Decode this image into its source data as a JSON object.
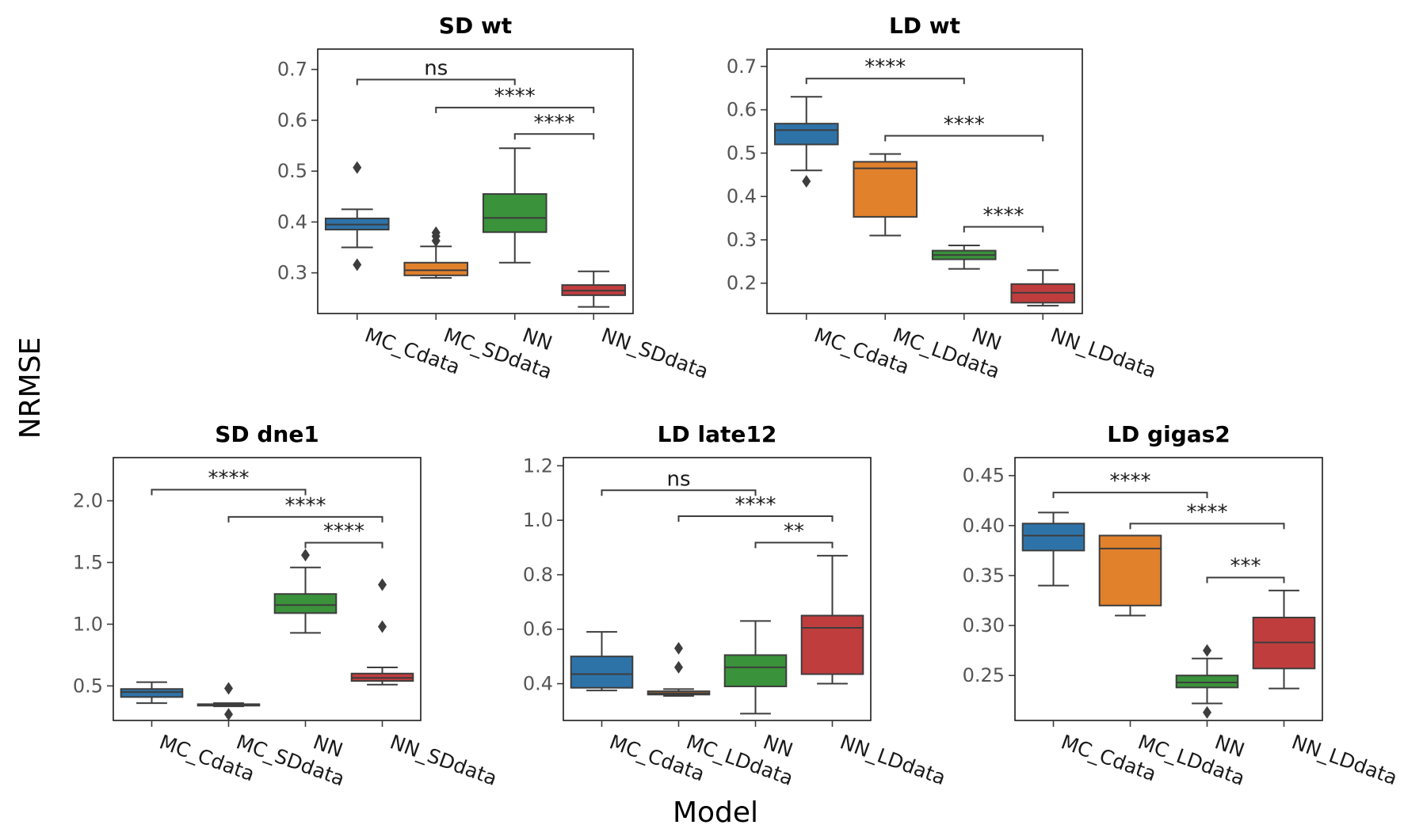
{
  "figure": {
    "ylabel": "NRMSE",
    "xlabel": "Model"
  },
  "colors": {
    "MC_Cdata": "#2e73a8",
    "MC_data": "#e1812c",
    "NN": "#3a923a",
    "NN_data": "#c03d3e",
    "line": "#3d3d3d"
  },
  "chart_data": [
    {
      "type": "box",
      "title": "SD wt",
      "categories": [
        "MC_Cdata",
        "MC_SDdata",
        "NN",
        "NN_SDdata"
      ],
      "ylim": [
        0.22,
        0.74
      ],
      "yticks": [
        0.3,
        0.4,
        0.5,
        0.6,
        0.7
      ],
      "tick_format": 1,
      "boxes": [
        {
          "whislo": 0.35,
          "q1": 0.385,
          "med": 0.395,
          "q3": 0.407,
          "whishi": 0.425,
          "fliers": [
            0.507,
            0.316
          ]
        },
        {
          "whislo": 0.29,
          "q1": 0.295,
          "med": 0.305,
          "q3": 0.32,
          "whishi": 0.352,
          "fliers": [
            0.379,
            0.372,
            0.363
          ]
        },
        {
          "whislo": 0.32,
          "q1": 0.38,
          "med": 0.408,
          "q3": 0.455,
          "whishi": 0.545,
          "fliers": []
        },
        {
          "whislo": 0.233,
          "q1": 0.256,
          "med": 0.265,
          "q3": 0.276,
          "whishi": 0.303,
          "fliers": []
        }
      ],
      "comparisons": [
        {
          "from": 0,
          "to": 2,
          "y": 0.68,
          "label": "ns"
        },
        {
          "from": 1,
          "to": 3,
          "y": 0.625,
          "label": "****"
        },
        {
          "from": 2,
          "to": 3,
          "y": 0.573,
          "label": "****"
        }
      ]
    },
    {
      "type": "box",
      "title": "LD wt",
      "categories": [
        "MC_Cdata",
        "MC_LDdata",
        "NN",
        "NN_LDdata"
      ],
      "ylim": [
        0.13,
        0.74
      ],
      "yticks": [
        0.2,
        0.3,
        0.4,
        0.5,
        0.6,
        0.7
      ],
      "tick_format": 1,
      "boxes": [
        {
          "whislo": 0.46,
          "q1": 0.52,
          "med": 0.553,
          "q3": 0.568,
          "whishi": 0.63,
          "fliers": [
            0.435
          ]
        },
        {
          "whislo": 0.31,
          "q1": 0.353,
          "med": 0.465,
          "q3": 0.48,
          "whishi": 0.498,
          "fliers": []
        },
        {
          "whislo": 0.233,
          "q1": 0.255,
          "med": 0.265,
          "q3": 0.275,
          "whishi": 0.287,
          "fliers": []
        },
        {
          "whislo": 0.148,
          "q1": 0.155,
          "med": 0.178,
          "q3": 0.198,
          "whishi": 0.23,
          "fliers": []
        }
      ],
      "comparisons": [
        {
          "from": 0,
          "to": 2,
          "y": 0.672,
          "label": "****"
        },
        {
          "from": 1,
          "to": 3,
          "y": 0.54,
          "label": "****"
        },
        {
          "from": 2,
          "to": 3,
          "y": 0.33,
          "label": "****"
        }
      ]
    },
    {
      "type": "box",
      "title": "SD dne1",
      "categories": [
        "MC_Cdata",
        "MC_SDdata",
        "NN",
        "NN_SDdata"
      ],
      "ylim": [
        0.22,
        2.35
      ],
      "yticks": [
        0.5,
        1.0,
        1.5,
        2.0
      ],
      "tick_format": 1,
      "boxes": [
        {
          "whislo": 0.36,
          "q1": 0.41,
          "med": 0.45,
          "q3": 0.475,
          "whishi": 0.53,
          "fliers": []
        },
        {
          "whislo": 0.335,
          "q1": 0.34,
          "med": 0.345,
          "q3": 0.352,
          "whishi": 0.36,
          "fliers": [
            0.48,
            0.27
          ]
        },
        {
          "whislo": 0.93,
          "q1": 1.09,
          "med": 1.155,
          "q3": 1.245,
          "whishi": 1.46,
          "fliers": [
            1.56
          ]
        },
        {
          "whislo": 0.51,
          "q1": 0.54,
          "med": 0.565,
          "q3": 0.6,
          "whishi": 0.65,
          "fliers": [
            1.32,
            0.98
          ]
        }
      ],
      "comparisons": [
        {
          "from": 0,
          "to": 2,
          "y": 2.09,
          "label": "****"
        },
        {
          "from": 1,
          "to": 3,
          "y": 1.87,
          "label": "****"
        },
        {
          "from": 2,
          "to": 3,
          "y": 1.66,
          "label": "****"
        }
      ]
    },
    {
      "type": "box",
      "title": "LD late12",
      "categories": [
        "MC_Cdata",
        "MC_LDdata",
        "NN",
        "NN_LDdata"
      ],
      "ylim": [
        0.265,
        1.23
      ],
      "yticks": [
        0.4,
        0.6,
        0.8,
        1.0,
        1.2
      ],
      "tick_format": 1,
      "boxes": [
        {
          "whislo": 0.375,
          "q1": 0.385,
          "med": 0.435,
          "q3": 0.5,
          "whishi": 0.59,
          "fliers": []
        },
        {
          "whislo": 0.355,
          "q1": 0.36,
          "med": 0.365,
          "q3": 0.372,
          "whishi": 0.38,
          "fliers": [
            0.53,
            0.46
          ]
        },
        {
          "whislo": 0.29,
          "q1": 0.39,
          "med": 0.46,
          "q3": 0.505,
          "whishi": 0.63,
          "fliers": []
        },
        {
          "whislo": 0.4,
          "q1": 0.435,
          "med": 0.605,
          "q3": 0.65,
          "whishi": 0.87,
          "fliers": []
        }
      ],
      "comparisons": [
        {
          "from": 0,
          "to": 2,
          "y": 1.11,
          "label": "ns"
        },
        {
          "from": 1,
          "to": 3,
          "y": 1.015,
          "label": "****"
        },
        {
          "from": 2,
          "to": 3,
          "y": 0.918,
          "label": "**"
        }
      ]
    },
    {
      "type": "box",
      "title": "LD gigas2",
      "categories": [
        "MC_Cdata",
        "MC_LDdata",
        "NN",
        "NN_LDdata"
      ],
      "ylim": [
        0.205,
        0.468
      ],
      "yticks": [
        0.25,
        0.3,
        0.35,
        0.4,
        0.45
      ],
      "tick_format": 2,
      "boxes": [
        {
          "whislo": 0.34,
          "q1": 0.375,
          "med": 0.39,
          "q3": 0.402,
          "whishi": 0.413,
          "fliers": []
        },
        {
          "whislo": 0.31,
          "q1": 0.32,
          "med": 0.377,
          "q3": 0.39,
          "whishi": 0.39,
          "fliers": []
        },
        {
          "whislo": 0.222,
          "q1": 0.238,
          "med": 0.243,
          "q3": 0.25,
          "whishi": 0.267,
          "fliers": [
            0.275,
            0.213
          ]
        },
        {
          "whislo": 0.237,
          "q1": 0.257,
          "med": 0.283,
          "q3": 0.308,
          "whishi": 0.335,
          "fliers": []
        }
      ],
      "comparisons": [
        {
          "from": 0,
          "to": 2,
          "y": 0.433,
          "label": "****"
        },
        {
          "from": 1,
          "to": 3,
          "y": 0.402,
          "label": "****"
        },
        {
          "from": 2,
          "to": 3,
          "y": 0.348,
          "label": "***"
        }
      ]
    }
  ]
}
